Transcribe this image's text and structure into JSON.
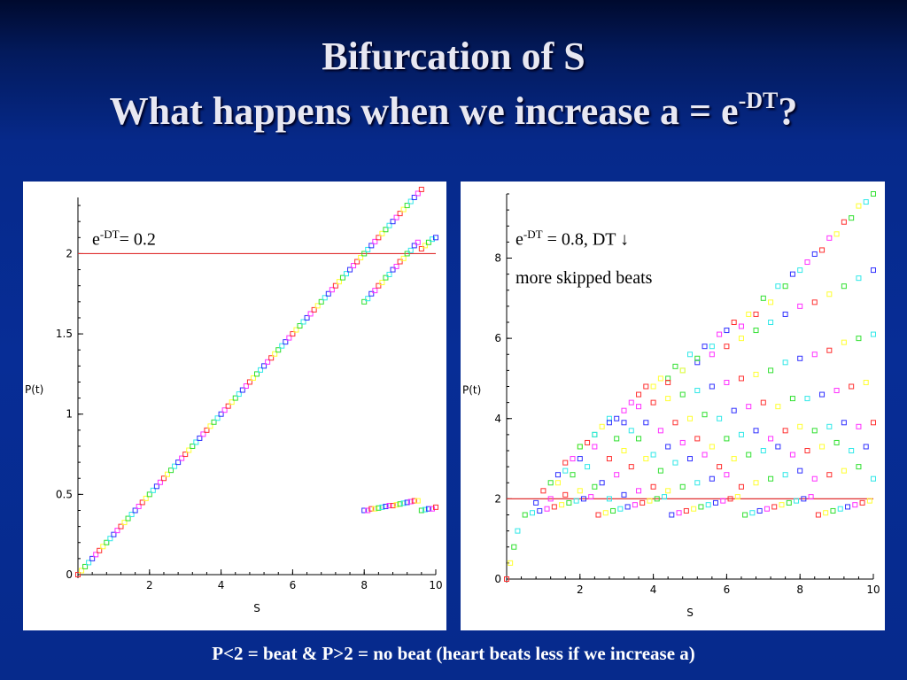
{
  "slide": {
    "title_line1": "Bifurcation of S",
    "title_line2_prefix": "What happens when we increase a = e",
    "title_line2_sup": "-DT",
    "title_line2_suffix": "?",
    "footer": "P<2 = beat & P>2 = no beat  (heart beats less if we increase a)"
  },
  "left_panel": {
    "annotation_base": "e",
    "annotation_sup": "-DT",
    "annotation_rest": "= 0.2"
  },
  "right_panel": {
    "annotation_base": "e",
    "annotation_sup": "-DT",
    "annotation_rest": " = 0.8, DT ↓",
    "annotation_line2": "more skipped beats"
  },
  "colors": {
    "marker_cycle": [
      "#ff3030",
      "#ffff30",
      "#30e030",
      "#30e8e8",
      "#3030ff",
      "#ff30ff"
    ],
    "threshold_line": "#e03030",
    "background": "#072d96"
  },
  "chart_data": [
    {
      "type": "scatter",
      "id": "left",
      "xlabel": "S",
      "ylabel": "P(t)",
      "xlim": [
        0,
        10
      ],
      "ylim": [
        0,
        2.35
      ],
      "xticks": [
        2,
        4,
        6,
        8,
        10
      ],
      "yticks": [
        0,
        0.5,
        1,
        1.5,
        2
      ],
      "threshold": 2,
      "series": [
        {
          "x": [
            0.0,
            0.1,
            0.2,
            0.3,
            0.4,
            0.5,
            0.6,
            0.7,
            0.8,
            0.9,
            1.0,
            1.1,
            1.2,
            1.3,
            1.4,
            1.5,
            1.6,
            1.7,
            1.8,
            1.9,
            2.0,
            2.1,
            2.2,
            2.3,
            2.4,
            2.5,
            2.6,
            2.7,
            2.8,
            2.9,
            3.0,
            3.1,
            3.2,
            3.3,
            3.4,
            3.5,
            3.6,
            3.7,
            3.8,
            3.9,
            4.0,
            4.1,
            4.2,
            4.3,
            4.4,
            4.5,
            4.6,
            4.7,
            4.8,
            4.9,
            5.0,
            5.1,
            5.2,
            5.3,
            5.4,
            5.5,
            5.6,
            5.7,
            5.8,
            5.9,
            6.0,
            6.1,
            6.2,
            6.3,
            6.4,
            6.5,
            6.6,
            6.7,
            6.8,
            6.9,
            7.0,
            7.1,
            7.2,
            7.3,
            7.4,
            7.5,
            7.6,
            7.7,
            7.8,
            7.9,
            8.0,
            8.1,
            8.2,
            8.3,
            8.4,
            8.5,
            8.6,
            8.7,
            8.8,
            8.9,
            9.0,
            9.1,
            9.2,
            9.3,
            9.4,
            9.5,
            9.6
          ],
          "y": [
            0.0,
            0.025,
            0.05,
            0.075,
            0.1,
            0.125,
            0.15,
            0.175,
            0.2,
            0.225,
            0.25,
            0.275,
            0.3,
            0.325,
            0.35,
            0.375,
            0.4,
            0.425,
            0.45,
            0.475,
            0.5,
            0.525,
            0.55,
            0.575,
            0.6,
            0.625,
            0.65,
            0.675,
            0.7,
            0.725,
            0.75,
            0.775,
            0.8,
            0.825,
            0.85,
            0.875,
            0.9,
            0.925,
            0.95,
            0.975,
            1.0,
            1.025,
            1.05,
            1.075,
            1.1,
            1.125,
            1.15,
            1.175,
            1.2,
            1.225,
            1.25,
            1.275,
            1.3,
            1.325,
            1.35,
            1.375,
            1.4,
            1.425,
            1.45,
            1.475,
            1.5,
            1.525,
            1.55,
            1.575,
            1.6,
            1.625,
            1.65,
            1.675,
            1.7,
            1.725,
            1.75,
            1.775,
            1.8,
            1.825,
            1.85,
            1.875,
            1.9,
            1.925,
            1.95,
            1.975,
            2.0,
            2.025,
            2.05,
            2.075,
            2.1,
            2.125,
            2.15,
            2.175,
            2.2,
            2.225,
            2.25,
            2.275,
            2.3,
            2.325,
            2.35,
            2.375,
            2.4
          ]
        },
        {
          "x": [
            8.0,
            8.1,
            8.2,
            8.3,
            8.4,
            8.5,
            8.6,
            8.7,
            8.8,
            8.9,
            9.0,
            9.1,
            9.2,
            9.3,
            9.4,
            9.5,
            9.6,
            9.7,
            9.8,
            9.9,
            10.0
          ],
          "y": [
            1.7,
            1.72,
            1.75,
            1.77,
            1.8,
            1.82,
            1.85,
            1.87,
            1.9,
            1.92,
            1.95,
            1.97,
            2.0,
            2.02,
            2.05,
            2.07,
            2.03,
            2.05,
            2.07,
            2.09,
            2.1
          ]
        },
        {
          "x": [
            8.0,
            8.1,
            8.2,
            8.3,
            8.4,
            8.5,
            8.6,
            8.7,
            8.8,
            8.9,
            9.0,
            9.1,
            9.2,
            9.3,
            9.4,
            9.5,
            9.6,
            9.7,
            9.8,
            9.9,
            10.0
          ],
          "y": [
            0.4,
            0.4,
            0.41,
            0.41,
            0.415,
            0.42,
            0.425,
            0.43,
            0.43,
            0.435,
            0.44,
            0.445,
            0.45,
            0.455,
            0.46,
            0.46,
            0.4,
            0.405,
            0.41,
            0.41,
            0.42
          ]
        }
      ]
    },
    {
      "type": "scatter",
      "id": "right",
      "xlabel": "S",
      "ylabel": "P(t)",
      "xlim": [
        0,
        10
      ],
      "ylim": [
        0,
        9.6
      ],
      "xticks": [
        2,
        4,
        6,
        8,
        10
      ],
      "yticks": [
        0,
        2,
        4,
        6,
        8
      ],
      "threshold": 2,
      "series": [
        {
          "x": [
            0.0,
            0.1,
            0.2,
            0.3
          ],
          "y": [
            0.0,
            0.4,
            0.8,
            1.2
          ]
        },
        {
          "x": [
            0.5,
            0.7,
            0.9,
            1.1,
            1.3,
            1.5,
            1.7,
            1.9,
            2.1,
            2.3,
            2.5,
            2.7,
            2.9,
            3.1,
            3.3,
            3.5,
            3.7,
            3.9,
            4.1,
            4.3,
            4.5,
            4.7,
            4.9,
            5.1,
            5.3,
            5.5,
            5.7,
            5.9,
            6.1,
            6.3,
            6.5,
            6.7,
            6.9,
            7.1,
            7.3,
            7.5,
            7.7,
            7.9,
            8.1,
            8.3,
            8.5,
            8.7,
            8.9,
            9.1,
            9.3,
            9.5,
            9.7,
            9.9
          ],
          "y": [
            1.6,
            1.65,
            1.7,
            1.75,
            1.8,
            1.85,
            1.9,
            1.95,
            2.0,
            2.05,
            1.6,
            1.65,
            1.7,
            1.75,
            1.8,
            1.85,
            1.9,
            1.95,
            2.0,
            2.05,
            1.6,
            1.65,
            1.7,
            1.75,
            1.8,
            1.85,
            1.9,
            1.95,
            2.0,
            2.05,
            1.6,
            1.65,
            1.7,
            1.75,
            1.8,
            1.85,
            1.9,
            1.95,
            2.0,
            2.05,
            1.6,
            1.65,
            1.7,
            1.75,
            1.8,
            1.85,
            1.9,
            1.95
          ]
        },
        {
          "x": [
            0.8,
            1.2,
            1.6,
            2.0,
            2.4,
            2.8,
            3.2,
            3.6,
            4.0,
            4.4,
            4.8,
            5.2,
            5.6,
            6.0,
            6.4,
            6.8,
            7.2,
            7.6,
            8.0,
            8.4,
            8.8,
            9.2,
            9.6,
            10.0
          ],
          "y": [
            1.9,
            2.0,
            2.1,
            2.2,
            2.3,
            2.0,
            2.1,
            2.2,
            2.3,
            2.2,
            2.3,
            2.4,
            2.5,
            2.6,
            2.3,
            2.4,
            2.5,
            2.6,
            2.7,
            2.5,
            2.6,
            2.7,
            2.8,
            2.5
          ]
        },
        {
          "x": [
            1.0,
            1.4,
            1.8,
            2.2,
            2.6,
            3.0,
            3.4,
            3.8,
            4.2,
            4.6,
            5.0,
            5.4,
            5.8,
            6.2,
            6.6,
            7.0,
            7.4,
            7.8,
            8.2,
            8.6,
            9.0,
            9.4,
            9.8
          ],
          "y": [
            2.2,
            2.4,
            2.6,
            2.8,
            2.4,
            2.6,
            2.8,
            3.0,
            2.7,
            2.9,
            3.0,
            3.1,
            2.8,
            3.0,
            3.1,
            3.2,
            3.3,
            3.1,
            3.2,
            3.3,
            3.4,
            3.2,
            3.3
          ]
        },
        {
          "x": [
            1.2,
            1.6,
            2.0,
            2.4,
            2.8,
            3.2,
            3.6,
            4.0,
            4.4,
            4.8,
            5.2,
            5.6,
            6.0,
            6.4,
            6.8,
            7.2,
            7.6,
            8.0,
            8.4,
            8.8,
            9.2,
            9.6,
            10.0
          ],
          "y": [
            2.4,
            2.7,
            3.0,
            3.3,
            3.0,
            3.2,
            3.5,
            3.1,
            3.3,
            3.4,
            3.5,
            3.3,
            3.5,
            3.6,
            3.7,
            3.5,
            3.7,
            3.8,
            3.7,
            3.8,
            3.9,
            3.8,
            3.9
          ]
        },
        {
          "x": [
            1.4,
            1.8,
            2.2,
            2.6,
            3.0,
            3.4,
            3.8,
            4.2,
            4.6,
            5.0,
            5.4,
            5.8,
            6.2,
            6.6,
            7.0,
            7.4,
            7.8,
            8.2,
            8.6,
            9.0,
            9.4,
            9.8
          ],
          "y": [
            2.6,
            3.0,
            3.4,
            3.8,
            3.5,
            3.7,
            3.9,
            3.7,
            3.9,
            4.0,
            4.1,
            4.0,
            4.2,
            4.3,
            4.4,
            4.3,
            4.5,
            4.5,
            4.6,
            4.7,
            4.8,
            4.9
          ]
        },
        {
          "x": [
            1.6,
            2.0,
            2.4,
            2.8,
            3.2,
            3.6,
            4.0,
            4.4,
            4.8,
            5.2,
            5.6,
            6.0,
            6.4,
            6.8,
            7.2,
            7.6,
            8.0,
            8.4,
            8.8,
            9.2,
            9.6,
            10.0
          ],
          "y": [
            2.9,
            3.3,
            3.6,
            4.0,
            3.9,
            4.3,
            4.4,
            4.5,
            4.6,
            4.7,
            4.8,
            4.9,
            5.0,
            5.1,
            5.2,
            5.4,
            5.5,
            5.6,
            5.7,
            5.9,
            6.0,
            6.1
          ]
        },
        {
          "x": [
            2.0,
            2.4,
            2.8,
            3.2,
            3.6,
            4.0,
            4.4,
            4.8,
            5.2,
            5.6,
            6.0,
            6.4,
            6.8,
            7.2,
            7.6,
            8.0,
            8.4,
            8.8,
            9.2,
            9.6,
            10.0
          ],
          "y": [
            3.3,
            3.6,
            3.9,
            4.2,
            4.6,
            4.8,
            5.0,
            5.2,
            5.4,
            5.6,
            5.8,
            6.0,
            6.2,
            6.4,
            6.6,
            6.8,
            6.9,
            7.1,
            7.3,
            7.5,
            7.7
          ]
        },
        {
          "x": [
            3.0,
            3.4,
            3.8,
            4.2,
            4.6,
            5.0,
            5.4,
            5.8,
            6.2,
            6.6,
            7.0,
            7.4,
            7.8,
            8.2,
            8.6,
            9.0,
            9.4,
            9.8
          ],
          "y": [
            4.0,
            4.4,
            4.8,
            5.0,
            5.3,
            5.6,
            5.8,
            6.1,
            6.4,
            6.6,
            7.0,
            7.3,
            7.6,
            7.9,
            8.2,
            8.6,
            9.0,
            9.4
          ]
        },
        {
          "x": [
            4.4,
            4.8,
            5.2,
            5.6,
            6.0,
            6.4,
            6.8,
            7.2,
            7.6,
            8.0,
            8.4,
            8.8,
            9.2,
            9.6,
            10.0
          ],
          "y": [
            4.9,
            5.2,
            5.5,
            5.8,
            6.2,
            6.3,
            6.6,
            6.9,
            7.3,
            7.7,
            8.1,
            8.5,
            8.9,
            9.3,
            9.6
          ]
        }
      ]
    }
  ]
}
